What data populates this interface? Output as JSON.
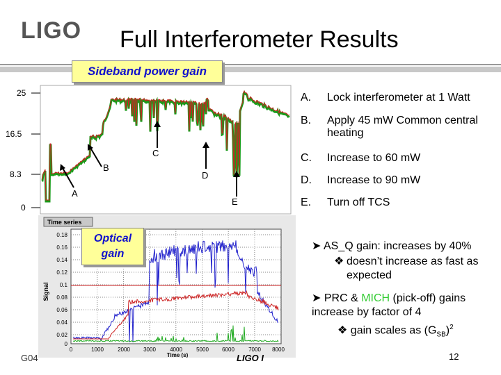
{
  "header": {
    "logo": "LIGO",
    "title": "Full Interferometer Results"
  },
  "labels": {
    "sideband": "Sideband power gain",
    "optical": "Optical gain"
  },
  "chart1": {
    "yticks": [
      "25",
      "16.5",
      "8.3",
      "0"
    ],
    "markers": [
      "A",
      "B",
      "C",
      "D",
      "E"
    ]
  },
  "chart2": {
    "panel_title": "Time series",
    "ylabel": "Signal",
    "xlabel": "Time (s)",
    "yticks": [
      "0.18",
      "0.16",
      "0.14",
      "0.12",
      "0.1",
      "0.08",
      "0.06",
      "0.04",
      "0.02",
      "0"
    ],
    "xticks": [
      "0",
      "1000",
      "2000",
      "3000",
      "4000",
      "5000",
      "6000",
      "7000",
      "8000"
    ]
  },
  "steps": [
    {
      "label": "A.",
      "text": "Lock interferometer at 1 Watt"
    },
    {
      "label": "B.",
      "text": "Apply 45 mW Common central heating"
    },
    {
      "label": "C.",
      "text": "Increase to 60 mW"
    },
    {
      "label": "D.",
      "text": "Increase to 90 mW"
    },
    {
      "label": "E.",
      "text": "Turn off TCS"
    }
  ],
  "notes": {
    "asq_main": "AS_Q gain: increases by 40%",
    "asq_sub": "doesn’t increase as fast as expected",
    "prc_a": "PRC & ",
    "prc_mich": "MICH",
    "prc_b": " (pick-off) gains increase by factor of 4",
    "gain_a": "gain scales as (G",
    "gain_sub": "SB",
    "gain_b": ")",
    "gain_sup": "2"
  },
  "footer": {
    "left": "G04",
    "center": "LIGO I",
    "page": "12"
  },
  "colors": {
    "green": "#1a9a1a",
    "red": "#cc2222",
    "blue": "#2222cc",
    "highlight": "#ffff99",
    "label_text": "#1111cc",
    "mich": "#33cc33"
  }
}
